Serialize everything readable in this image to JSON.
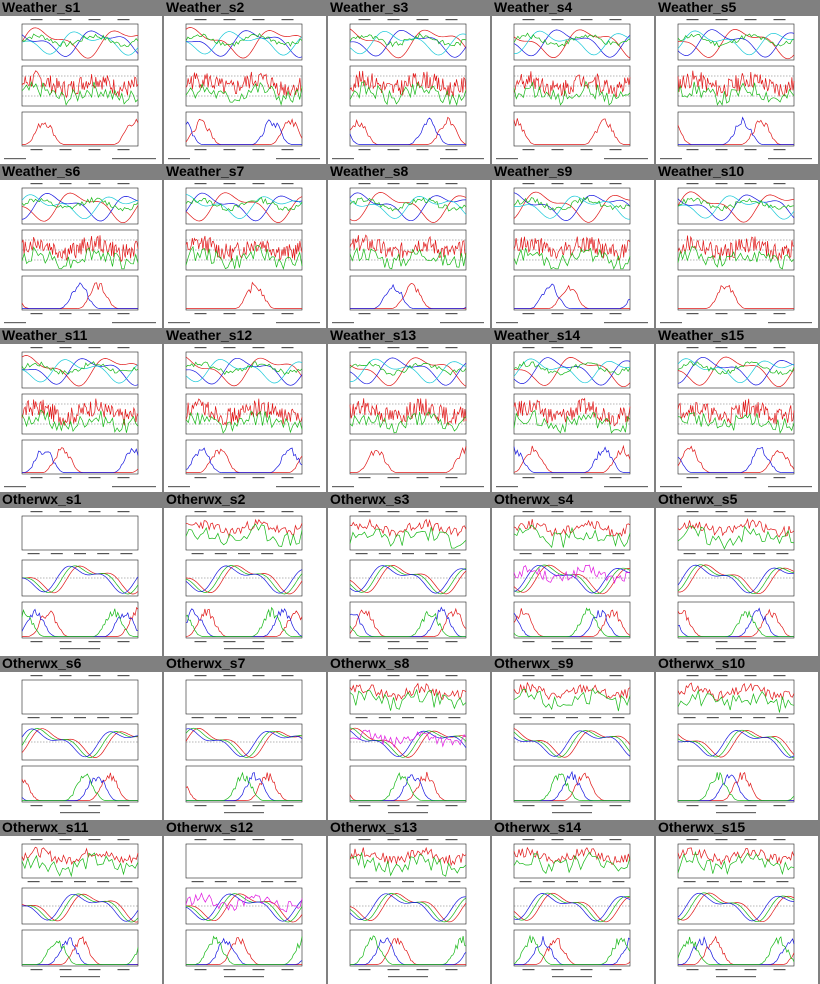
{
  "page": {
    "background": "#808080"
  },
  "series_colors": {
    "red": "#e01818",
    "green": "#18b818",
    "blue": "#1818e0",
    "cyan": "#18c8d8",
    "magenta": "#e018e0",
    "dark": "#202020"
  },
  "thumbnails": [
    {
      "label": "Weather_s1",
      "type": "weather"
    },
    {
      "label": "Weather_s2",
      "type": "weather"
    },
    {
      "label": "Weather_s3",
      "type": "weather"
    },
    {
      "label": "Weather_s4",
      "type": "weather"
    },
    {
      "label": "Weather_s5",
      "type": "weather"
    },
    {
      "label": "Weather_s6",
      "type": "weather"
    },
    {
      "label": "Weather_s7",
      "type": "weather"
    },
    {
      "label": "Weather_s8",
      "type": "weather"
    },
    {
      "label": "Weather_s9",
      "type": "weather"
    },
    {
      "label": "Weather_s10",
      "type": "weather"
    },
    {
      "label": "Weather_s11",
      "type": "weather"
    },
    {
      "label": "Weather_s12",
      "type": "weather"
    },
    {
      "label": "Weather_s13",
      "type": "weather"
    },
    {
      "label": "Weather_s14",
      "type": "weather"
    },
    {
      "label": "Weather_s15",
      "type": "weather"
    },
    {
      "label": "Otherwx_s1",
      "type": "otherwx",
      "empty_top": true
    },
    {
      "label": "Otherwx_s2",
      "type": "otherwx"
    },
    {
      "label": "Otherwx_s3",
      "type": "otherwx"
    },
    {
      "label": "Otherwx_s4",
      "type": "otherwx"
    },
    {
      "label": "Otherwx_s5",
      "type": "otherwx"
    },
    {
      "label": "Otherwx_s6",
      "type": "otherwx",
      "empty_top": true
    },
    {
      "label": "Otherwx_s7",
      "type": "otherwx",
      "empty_top": true
    },
    {
      "label": "Otherwx_s8",
      "type": "otherwx"
    },
    {
      "label": "Otherwx_s9",
      "type": "otherwx"
    },
    {
      "label": "Otherwx_s10",
      "type": "otherwx"
    },
    {
      "label": "Otherwx_s11",
      "type": "otherwx"
    },
    {
      "label": "Otherwx_s12",
      "type": "otherwx",
      "empty_top": true
    },
    {
      "label": "Otherwx_s13",
      "type": "otherwx"
    },
    {
      "label": "Otherwx_s14",
      "type": "otherwx"
    },
    {
      "label": "Otherwx_s15",
      "type": "otherwx"
    }
  ]
}
